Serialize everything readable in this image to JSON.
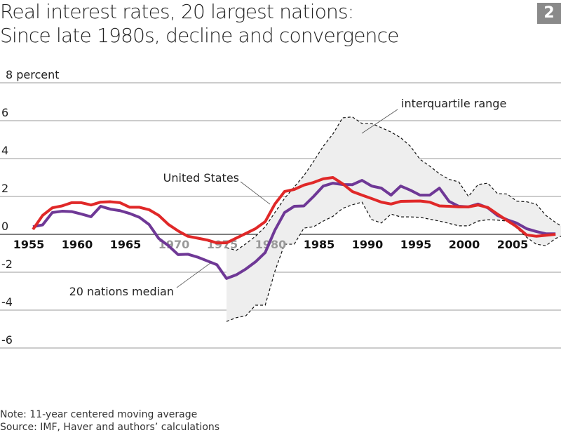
{
  "header": {
    "title_line1": "Real interest rates, 20 largest nations:",
    "title_line2": "Since late 1980s, decline and convergence",
    "figure_number": "2"
  },
  "footer": {
    "note": "Note: 11-year centered moving average",
    "source": "Source: IMF, Haver and authors’ calculations"
  },
  "chart_data": {
    "type": "line",
    "title": "Real interest rates, 20 largest nations: Since late 1980s, decline and convergence",
    "ylabel": "8 percent",
    "ylim": [
      -6,
      8
    ],
    "yticks": [
      8,
      6,
      4,
      2,
      0,
      -2,
      -4,
      -6
    ],
    "ytick_labels": [
      "8 percent",
      "6",
      "4",
      "2",
      "0",
      "-2",
      "-4",
      "-6"
    ],
    "xlim": [
      1955,
      2009.6
    ],
    "xticks": [
      1955,
      1960,
      1965,
      1970,
      1975,
      1980,
      1985,
      1990,
      1995,
      2000,
      2005
    ],
    "xtick_labels": [
      "1955",
      "1960",
      "1965",
      "1970",
      "1975",
      "1980",
      "1985",
      "1990",
      "1995",
      "2000",
      "2005"
    ],
    "grid": true,
    "colors": {
      "united_states": "#e02828",
      "median": "#6f3896",
      "iqr_fill": "#eeeeee",
      "badge": "#8a8a8a"
    },
    "annotations": {
      "iqr": "interquartile range",
      "us": "United States",
      "median": "20 nations median"
    },
    "series": [
      {
        "name": "United States",
        "x": [
          1955,
          1956,
          1957,
          1958,
          1959,
          1960,
          1961,
          1962,
          1963,
          1964,
          1965,
          1966,
          1967,
          1968,
          1969,
          1970,
          1971,
          1972,
          1973,
          1974,
          1975,
          1976,
          1977,
          1978,
          1979,
          1980,
          1981,
          1982,
          1983,
          1984,
          1985,
          1986,
          1987,
          1988,
          1989,
          1990,
          1991,
          1992,
          1993,
          1994,
          1995,
          1996,
          1997,
          1998,
          1999,
          2000,
          2001,
          2002,
          2003,
          2004,
          2005,
          2006,
          2007,
          2008,
          2009
        ],
        "values": [
          0.26,
          1.0,
          1.4,
          1.5,
          1.67,
          1.67,
          1.55,
          1.7,
          1.72,
          1.67,
          1.43,
          1.43,
          1.3,
          1.0,
          0.52,
          0.18,
          -0.1,
          -0.2,
          -0.3,
          -0.45,
          -0.45,
          -0.2,
          0.05,
          0.3,
          0.67,
          1.6,
          2.26,
          2.37,
          2.6,
          2.74,
          2.93,
          3.0,
          2.67,
          2.26,
          2.07,
          1.89,
          1.7,
          1.6,
          1.74,
          1.75,
          1.76,
          1.7,
          1.5,
          1.48,
          1.45,
          1.45,
          1.55,
          1.42,
          1.07,
          0.73,
          0.4,
          -0.03,
          -0.1,
          -0.05,
          0.0
        ]
      },
      {
        "name": "20 nations median",
        "x": [
          1955,
          1956,
          1957,
          1958,
          1959,
          1960,
          1961,
          1962,
          1963,
          1964,
          1965,
          1966,
          1967,
          1968,
          1969,
          1970,
          1971,
          1972,
          1973,
          1974,
          1975,
          1976,
          1977,
          1978,
          1979,
          1980,
          1981,
          1982,
          1983,
          1984,
          1985,
          1986,
          1987,
          1988,
          1989,
          1990,
          1991,
          1992,
          1993,
          1994,
          1995,
          1996,
          1997,
          1998,
          1999,
          2000,
          2001,
          2002,
          2003,
          2004,
          2005,
          2006,
          2007,
          2008,
          2009
        ],
        "values": [
          0.4,
          0.5,
          1.15,
          1.22,
          1.2,
          1.07,
          0.93,
          1.48,
          1.33,
          1.25,
          1.1,
          0.9,
          0.52,
          -0.22,
          -0.6,
          -1.07,
          -1.05,
          -1.2,
          -1.4,
          -1.6,
          -2.33,
          -2.14,
          -1.83,
          -1.45,
          -0.96,
          0.22,
          1.15,
          1.48,
          1.5,
          2.0,
          2.55,
          2.7,
          2.63,
          2.62,
          2.85,
          2.55,
          2.44,
          2.07,
          2.55,
          2.33,
          2.07,
          2.07,
          2.44,
          1.74,
          1.48,
          1.45,
          1.6,
          1.4,
          1.0,
          0.77,
          0.59,
          0.3,
          0.15,
          0.03,
          0.03
        ]
      },
      {
        "name": "interquartile range",
        "x": [
          1975,
          1976,
          1977,
          1978,
          1979,
          1980,
          1981,
          1982,
          1983,
          1984,
          1985,
          1986,
          1987,
          1988,
          1989,
          1990,
          1991,
          1992,
          1993,
          1994,
          1995,
          1996,
          1997,
          1998,
          1999,
          2000,
          2001,
          2002,
          2003,
          2004,
          2005,
          2006,
          2007,
          2008,
          2009,
          2010
        ],
        "upper": [
          -0.7,
          -0.85,
          -0.5,
          -0.1,
          0.4,
          1.15,
          1.9,
          2.5,
          3.1,
          3.85,
          4.65,
          5.3,
          6.15,
          6.2,
          5.85,
          5.85,
          5.63,
          5.4,
          5.1,
          4.65,
          3.96,
          3.6,
          3.2,
          2.9,
          2.77,
          2.0,
          2.63,
          2.7,
          2.15,
          2.13,
          1.75,
          1.72,
          1.6,
          1.0,
          0.63,
          0.3
        ],
        "lower": [
          -4.6,
          -4.4,
          -4.3,
          -3.74,
          -3.74,
          -1.95,
          -0.52,
          -0.52,
          0.33,
          0.4,
          0.7,
          0.95,
          1.37,
          1.56,
          1.7,
          0.78,
          0.6,
          1.07,
          0.92,
          0.92,
          0.9,
          0.8,
          0.7,
          0.58,
          0.45,
          0.45,
          0.7,
          0.77,
          0.75,
          0.7,
          0.33,
          -0.15,
          -0.52,
          -0.6,
          -0.22,
          0.0
        ]
      }
    ]
  }
}
